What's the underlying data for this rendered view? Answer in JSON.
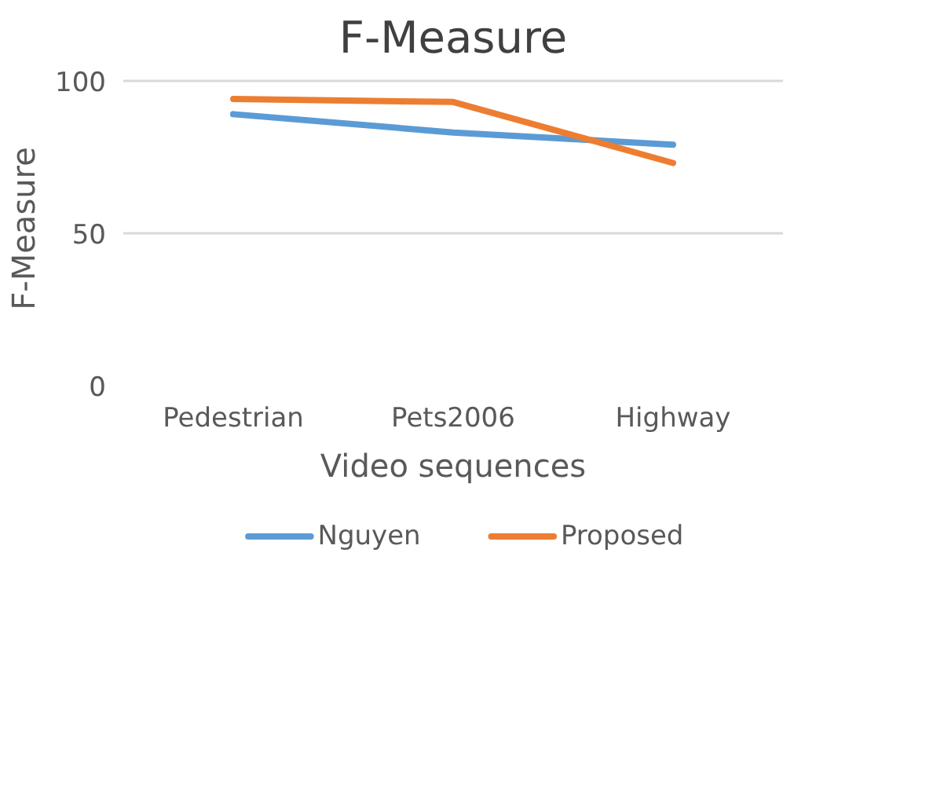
{
  "chart_data": {
    "type": "line",
    "title": "F-Measure",
    "xlabel": "Video sequences",
    "ylabel": "F-Measure",
    "categories": [
      "Pedestrian",
      "Pets2006",
      "Highway"
    ],
    "series": [
      {
        "name": "Nguyen",
        "color": "#5b9bd5",
        "values": [
          89,
          83,
          79
        ]
      },
      {
        "name": "Proposed",
        "color": "#ed7d31",
        "values": [
          94,
          93,
          73
        ]
      }
    ],
    "ylim": [
      0,
      100
    ],
    "yticks": [
      0,
      50,
      100
    ],
    "grid": "y",
    "legend": "bottom",
    "marker": "none",
    "line_style": "solid"
  }
}
